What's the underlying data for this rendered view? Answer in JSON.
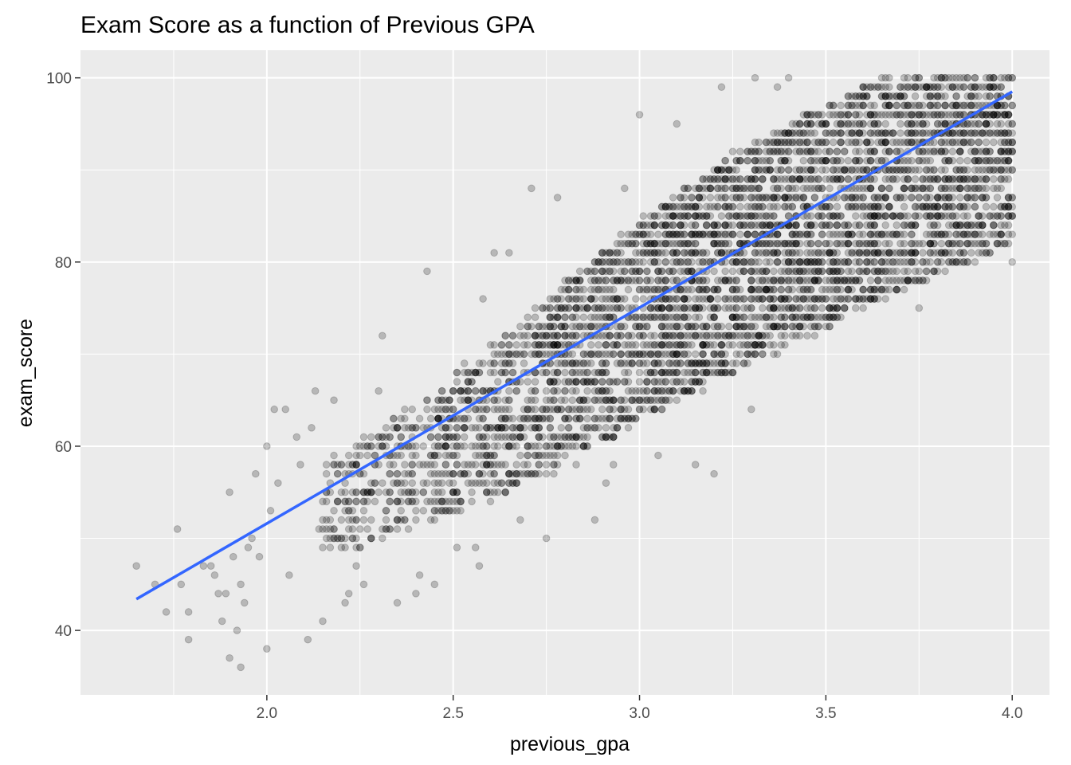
{
  "chart_data": {
    "type": "scatter",
    "title": "Exam Score as a function of Previous GPA",
    "xlabel": "previous_gpa",
    "ylabel": "exam_score",
    "xlim": [
      1.5,
      4.1
    ],
    "ylim": [
      33,
      103
    ],
    "x_ticks": [
      2.0,
      2.5,
      3.0,
      3.5,
      4.0
    ],
    "x_tick_labels": [
      "2.0",
      "2.5",
      "3.0",
      "3.5",
      "4.0"
    ],
    "y_ticks": [
      40,
      60,
      80,
      100
    ],
    "y_tick_labels": [
      "40",
      "60",
      "80",
      "100"
    ],
    "grid": true,
    "legend": "none",
    "point_color": "#000000",
    "point_opacity": 0.22,
    "panel_background": "#EBEBEB",
    "grid_color": "#FFFFFF",
    "trend_line": {
      "type": "linear fit",
      "color": "#3366FF",
      "x": [
        1.65,
        4.0
      ],
      "y": [
        43.4,
        98.5
      ]
    },
    "points": [
      [
        1.65,
        47
      ],
      [
        1.7,
        45
      ],
      [
        1.73,
        42
      ],
      [
        1.76,
        51
      ],
      [
        1.77,
        45
      ],
      [
        1.79,
        39
      ],
      [
        1.79,
        42
      ],
      [
        1.83,
        47
      ],
      [
        1.85,
        47
      ],
      [
        1.86,
        46
      ],
      [
        1.87,
        44
      ],
      [
        1.88,
        41
      ],
      [
        1.89,
        44
      ],
      [
        1.9,
        37
      ],
      [
        1.9,
        55
      ],
      [
        1.91,
        48
      ],
      [
        1.92,
        40
      ],
      [
        1.93,
        36
      ],
      [
        1.93,
        45
      ],
      [
        1.94,
        43
      ],
      [
        1.95,
        49
      ],
      [
        1.96,
        50
      ],
      [
        1.97,
        57
      ],
      [
        1.98,
        48
      ],
      [
        2.0,
        60
      ],
      [
        2.0,
        38
      ],
      [
        2.01,
        53
      ],
      [
        2.02,
        64
      ],
      [
        2.03,
        56
      ],
      [
        2.05,
        64
      ],
      [
        2.06,
        46
      ],
      [
        2.08,
        61
      ],
      [
        2.09,
        58
      ],
      [
        2.11,
        39
      ],
      [
        2.12,
        62
      ],
      [
        2.13,
        66
      ],
      [
        2.14,
        51
      ],
      [
        2.15,
        41
      ],
      [
        2.18,
        65
      ],
      [
        2.21,
        43
      ],
      [
        2.22,
        44
      ],
      [
        2.24,
        47
      ],
      [
        2.26,
        45
      ],
      [
        2.3,
        66
      ],
      [
        2.31,
        72
      ],
      [
        2.35,
        43
      ],
      [
        2.4,
        44
      ],
      [
        2.41,
        46
      ],
      [
        2.43,
        79
      ],
      [
        2.45,
        45
      ],
      [
        2.51,
        49
      ],
      [
        2.56,
        49
      ],
      [
        2.57,
        47
      ],
      [
        2.58,
        76
      ],
      [
        2.61,
        81
      ],
      [
        2.65,
        81
      ],
      [
        2.68,
        52
      ],
      [
        2.71,
        88
      ],
      [
        2.75,
        50
      ],
      [
        2.78,
        87
      ],
      [
        2.83,
        58
      ],
      [
        2.88,
        52
      ],
      [
        2.91,
        56
      ],
      [
        2.93,
        58
      ],
      [
        2.96,
        88
      ],
      [
        3.0,
        96
      ],
      [
        3.05,
        59
      ],
      [
        3.1,
        95
      ],
      [
        3.15,
        58
      ],
      [
        3.2,
        57
      ],
      [
        3.22,
        99
      ],
      [
        3.25,
        92
      ],
      [
        3.3,
        64
      ],
      [
        3.31,
        100
      ],
      [
        3.37,
        99
      ],
      [
        3.4,
        100
      ],
      [
        3.75,
        75
      ],
      [
        3.85,
        80
      ],
      [
        3.9,
        83
      ],
      [
        3.95,
        84
      ],
      [
        2.2,
        55
      ],
      [
        2.25,
        57
      ],
      [
        2.3,
        60
      ],
      [
        2.35,
        60
      ],
      [
        2.4,
        62
      ],
      [
        2.45,
        64
      ],
      [
        2.5,
        66
      ],
      [
        2.55,
        67
      ],
      [
        2.6,
        69
      ],
      [
        2.65,
        70
      ],
      [
        2.7,
        71
      ],
      [
        2.75,
        73
      ],
      [
        2.8,
        75
      ],
      [
        2.85,
        76
      ],
      [
        2.9,
        78
      ],
      [
        2.95,
        79
      ],
      [
        3.0,
        80
      ],
      [
        3.05,
        82
      ],
      [
        3.1,
        83
      ],
      [
        3.15,
        85
      ],
      [
        3.2,
        86
      ],
      [
        3.25,
        88
      ],
      [
        3.3,
        89
      ],
      [
        3.35,
        90
      ],
      [
        3.4,
        92
      ],
      [
        3.45,
        93
      ],
      [
        3.5,
        95
      ],
      [
        3.55,
        96
      ],
      [
        3.6,
        97
      ],
      [
        3.65,
        98
      ],
      [
        3.7,
        99
      ],
      [
        3.75,
        100
      ],
      [
        3.8,
        100
      ],
      [
        3.85,
        100
      ],
      [
        3.9,
        100
      ],
      [
        3.95,
        100
      ],
      [
        4.0,
        100
      ],
      [
        4.0,
        90
      ],
      [
        4.0,
        85
      ],
      [
        4.0,
        80
      ],
      [
        2.5,
        55
      ],
      [
        2.6,
        57
      ],
      [
        2.7,
        60
      ],
      [
        2.8,
        63
      ],
      [
        2.9,
        66
      ],
      [
        3.0,
        68
      ],
      [
        3.1,
        71
      ],
      [
        3.2,
        74
      ],
      [
        3.3,
        77
      ],
      [
        3.4,
        80
      ],
      [
        3.5,
        82
      ],
      [
        3.6,
        85
      ],
      [
        3.7,
        87
      ],
      [
        3.8,
        89
      ],
      [
        3.9,
        92
      ]
    ],
    "density_bands": [
      {
        "x_from": 2.15,
        "x_to": 2.45,
        "y_low_from": 48,
        "y_high_from": 58,
        "y_low_to": 52,
        "y_high_to": 66,
        "weight": 1
      },
      {
        "x_from": 2.45,
        "x_to": 2.75,
        "y_low_from": 52,
        "y_high_from": 66,
        "y_low_to": 57,
        "y_high_to": 76,
        "weight": 2
      },
      {
        "x_from": 2.75,
        "x_to": 3.05,
        "y_low_from": 57,
        "y_high_from": 76,
        "y_low_to": 64,
        "y_high_to": 86,
        "weight": 3
      },
      {
        "x_from": 3.05,
        "x_to": 3.35,
        "y_low_from": 64,
        "y_high_from": 86,
        "y_low_to": 70,
        "y_high_to": 94,
        "weight": 4
      },
      {
        "x_from": 3.35,
        "x_to": 3.65,
        "y_low_from": 70,
        "y_high_from": 94,
        "y_low_to": 76,
        "y_high_to": 100,
        "weight": 4
      },
      {
        "x_from": 3.65,
        "x_to": 4.0,
        "y_low_from": 76,
        "y_high_from": 100,
        "y_low_to": 82,
        "y_high_to": 100,
        "weight": 4
      }
    ]
  }
}
